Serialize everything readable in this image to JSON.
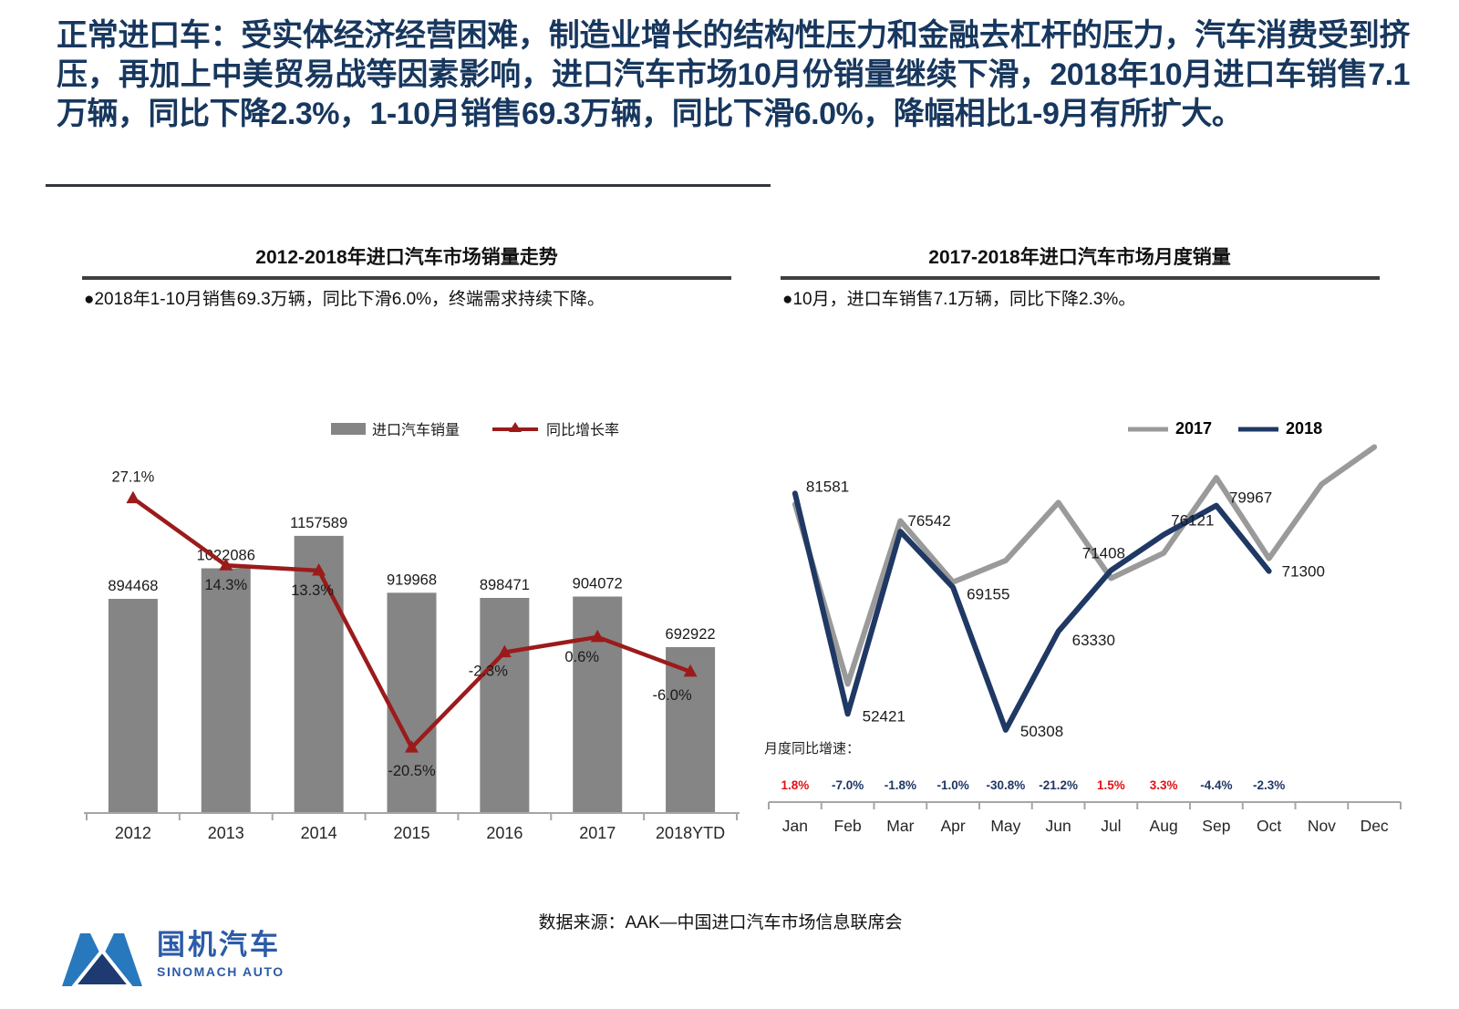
{
  "slide": {
    "header": {
      "text": "正常进口车：受实体经济经营困难，制造业增长的结构性压力和金融去杠杆的压力，汽车消费受到挤压，再加上中美贸易战等因素影响，进口汽车市场10月份销量继续下滑，2018年10月进口车销售7.1万辆，同比下降2.3%，1-10月销售69.3万辆，同比下滑6.0%，降幅相比1-9月有所扩大。",
      "color": "#17375E"
    },
    "footer": {
      "logo_cn": "国机汽车",
      "logo_en": "SINOMACH AUTO",
      "source": "数据来源：AAK—中国进口汽车市场信息联席会"
    }
  },
  "left_panel": {
    "title": "2012-2018年进口汽车市场销量走势",
    "bullet": "●2018年1-10月销售69.3万辆，同比下滑6.0%，终端需求持续下降。",
    "legend": {
      "bar_label": "进口汽车销量",
      "line_label": "同比增长率"
    }
  },
  "right_panel": {
    "title": "2017-2018年进口汽车市场月度销量",
    "bullet": "●10月，进口车销售7.1万辆，同比下降2.3%。",
    "legend": {
      "s2017": "2017",
      "s2018": "2018"
    }
  },
  "chart_data": [
    {
      "type": "bar",
      "title": "2012-2018年进口汽车市场销量走势",
      "categories": [
        "2012",
        "2013",
        "2014",
        "2015",
        "2016",
        "2017",
        "2018YTD"
      ],
      "series": [
        {
          "name": "进口汽车销量",
          "kind": "bar",
          "color": "#858585",
          "values": [
            894468,
            1022086,
            1157589,
            919968,
            898471,
            904072,
            692922
          ]
        },
        {
          "name": "同比增长率",
          "kind": "line",
          "color": "#9B1B1B",
          "unit": "%",
          "values": [
            27.1,
            14.3,
            13.3,
            -20.5,
            -2.3,
            0.6,
            -6.0
          ],
          "labels": [
            "27.1%",
            "14.3%",
            "13.3%",
            "-20.5%",
            "-2.3%",
            "0.6%",
            "-6.0%"
          ]
        }
      ],
      "ylim": [
        0,
        1378000
      ],
      "y2lim": [
        -33,
        30
      ],
      "grid": false,
      "legend_position": "top"
    },
    {
      "type": "line",
      "title": "2017-2018年进口汽车市场月度销量",
      "categories": [
        "Jan",
        "Feb",
        "Mar",
        "Apr",
        "May",
        "Jun",
        "Jul",
        "Aug",
        "Sep",
        "Oct",
        "Nov",
        "Dec"
      ],
      "series": [
        {
          "name": "2017",
          "color": "#9A9A9A",
          "estimated": true,
          "values": [
            80138,
            56367,
            77945,
            69853,
            72700,
            80368,
            70353,
            73689,
            83647,
            72979,
            82800,
            87700
          ]
        },
        {
          "name": "2018",
          "color": "#1F3864",
          "values": [
            81581,
            52421,
            76542,
            69155,
            50308,
            63330,
            71408,
            76121,
            79967,
            71300
          ]
        }
      ],
      "labels_series": "2018",
      "monthly_yoy": {
        "caption": "月度同比增速：",
        "values": [
          "1.8%",
          "-7.0%",
          "-1.8%",
          "-1.0%",
          "-30.8%",
          "-21.2%",
          "1.5%",
          "3.3%",
          "-4.4%",
          "-2.3%"
        ],
        "positive_color": "#E01212",
        "negative_color": "#1F3864"
      },
      "ylim": [
        48000,
        88000
      ],
      "grid": false,
      "legend_position": "top-right"
    }
  ]
}
